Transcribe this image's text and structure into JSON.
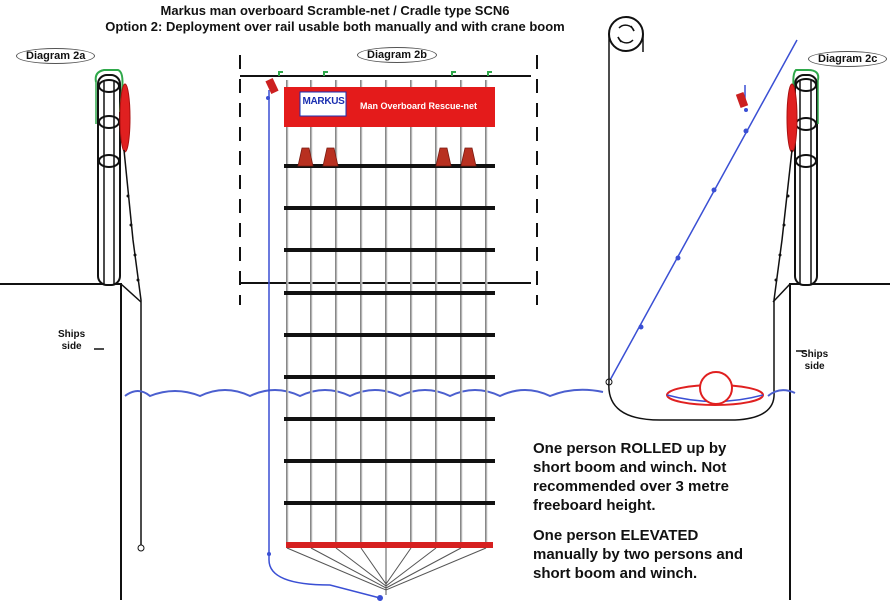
{
  "title": {
    "line1": "Markus man overboard Scramble-net  / Cradle type SCN6",
    "line2": "Option 2: Deployment over rail usable both manually and with crane boom"
  },
  "diagrams": {
    "a": "Diagram 2a",
    "b": "Diagram 2b",
    "c": "Diagram 2c"
  },
  "ships_side": {
    "left": [
      "Ships",
      "side"
    ],
    "right": [
      "Ships",
      "side"
    ]
  },
  "net_banner": {
    "logo": "MARKUS",
    "text": "Man Overboard Rescue-net"
  },
  "notes": {
    "note1": [
      "One person ROLLED up by",
      "short boom and winch. Not",
      "recommended over 3 metre",
      "freeboard height."
    ],
    "note2": [
      "One person ELEVATED",
      "manually by two persons and",
      "short boom and winch."
    ]
  },
  "colors": {
    "water": "#4b5fcf",
    "float": "#e02020",
    "rung": "#111111",
    "line": "#3a4fd4",
    "clip": "#2fa84a"
  }
}
